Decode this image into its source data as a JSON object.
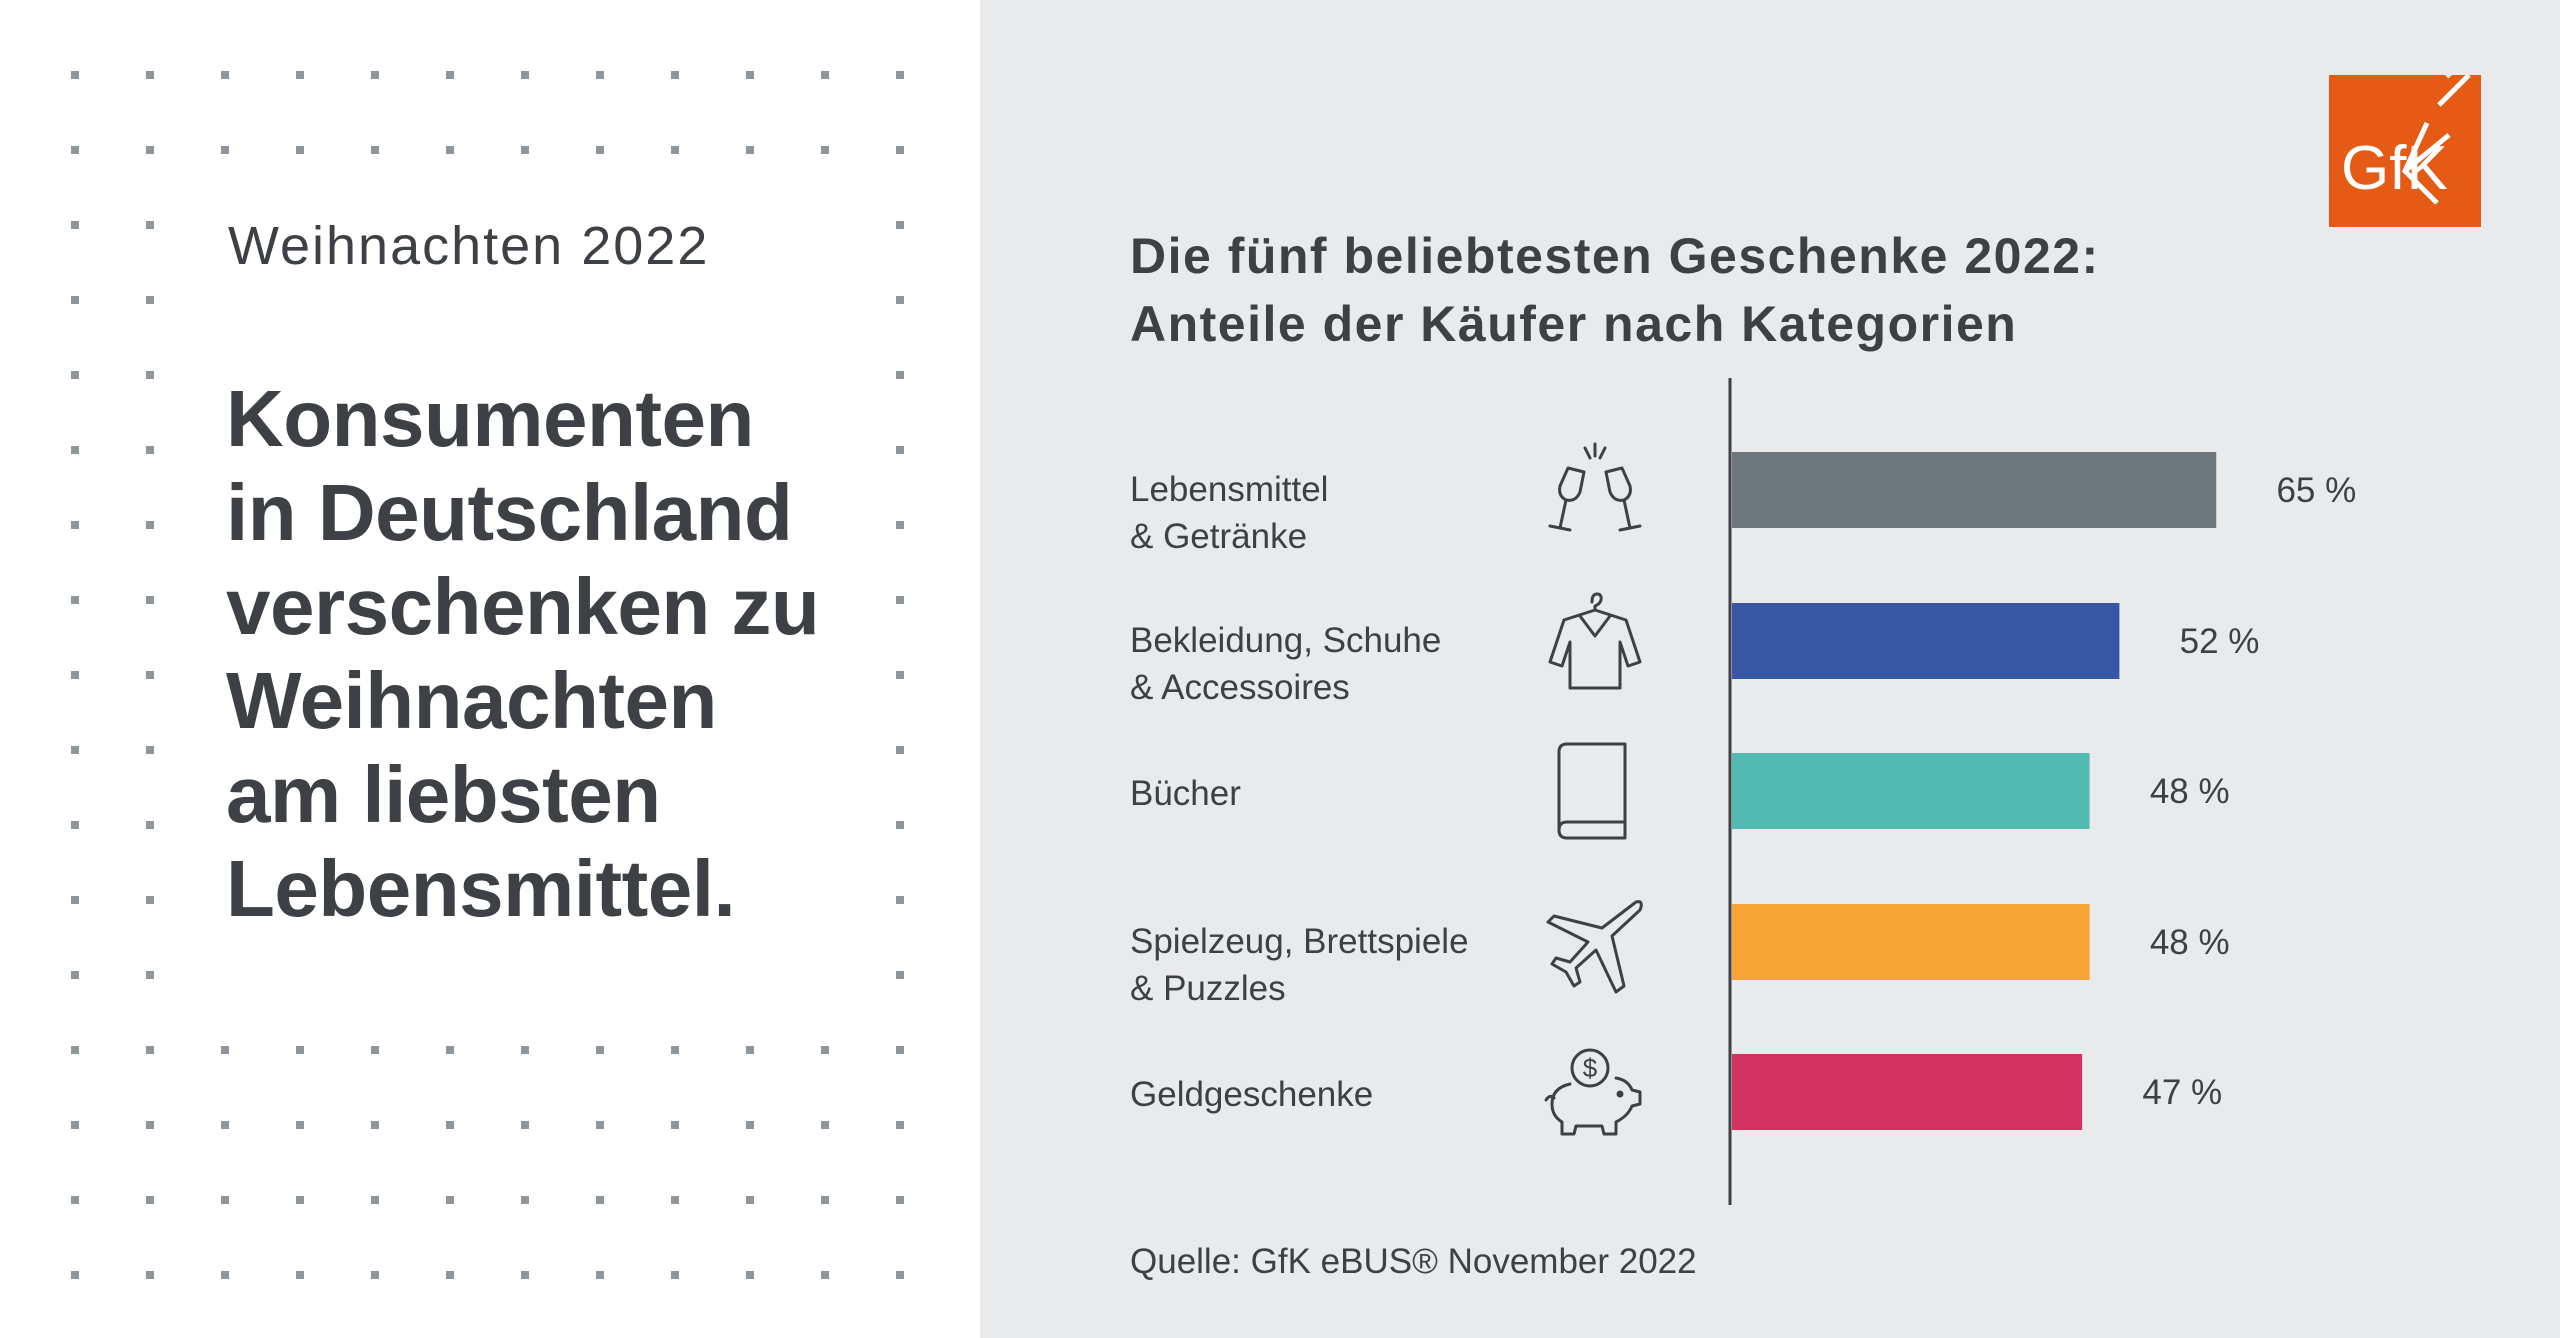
{
  "left_panel": {
    "kicker": "Weihnachten 2022",
    "headline_lines": [
      "Konsumenten",
      "in Deutschland",
      "verschenken zu",
      "Weihnachten",
      "am liebsten",
      "Lebensmittel."
    ]
  },
  "logo": {
    "text": "GfK",
    "color": "#e55a14"
  },
  "colors": {
    "dots": "#8e959b",
    "axis": "#3d4045",
    "text": "#3d4045"
  },
  "chart_data": {
    "type": "bar",
    "orientation": "horizontal",
    "title_lines": [
      "Die fünf beliebtesten Geschenke 2022:",
      "Anteile der Käufer nach Kategorien"
    ],
    "categories": [
      {
        "lines": [
          "Lebensmittel",
          "& Getränke"
        ],
        "icon": "champagne-glasses-icon",
        "value": 65,
        "label": "65 %",
        "color": "#6c767b"
      },
      {
        "lines": [
          "Bekleidung, Schuhe",
          "& Accessoires"
        ],
        "icon": "shirt-on-hanger-icon",
        "value": 52,
        "label": "52 %",
        "color": "#3756a3"
      },
      {
        "lines": [
          "Bücher"
        ],
        "icon": "book-icon",
        "value": 48,
        "label": "48 %",
        "color": "#54bbb2"
      },
      {
        "lines": [
          "Spielzeug, Brettspiele",
          "& Puzzles"
        ],
        "icon": "airplane-icon",
        "value": 48,
        "label": "48 %",
        "color": "#f5a435"
      },
      {
        "lines": [
          "Geldgeschenke"
        ],
        "icon": "piggy-bank-icon",
        "value": 47,
        "label": "47 %",
        "color": "#d2325f"
      }
    ],
    "unit": "%",
    "xlim": [
      0,
      100
    ],
    "grid": false,
    "source": "Quelle:  GfK eBUS® November 2022"
  }
}
